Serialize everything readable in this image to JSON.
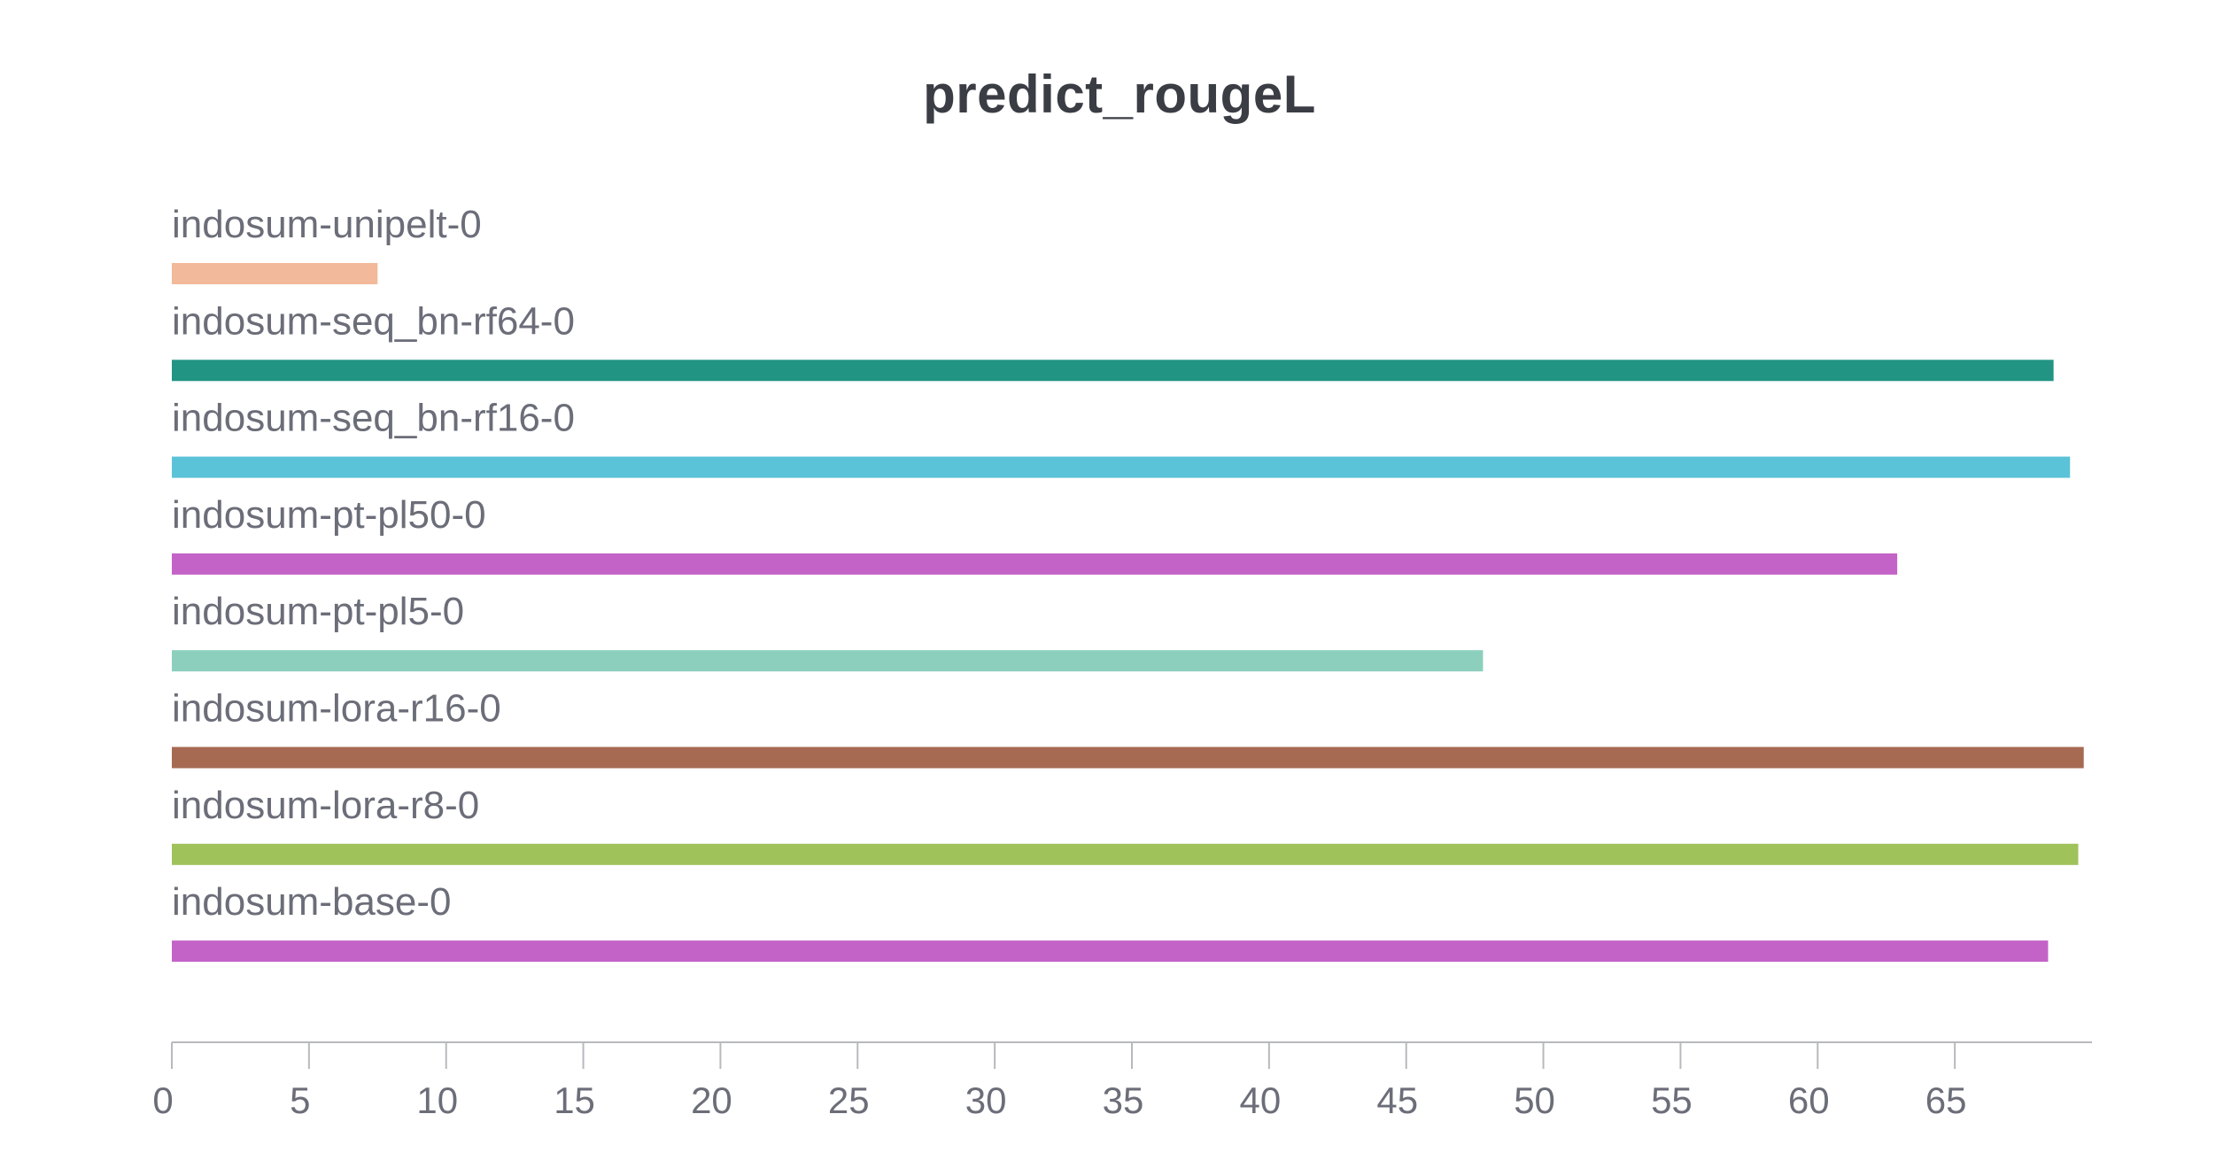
{
  "chart_data": {
    "type": "bar",
    "orientation": "horizontal",
    "title": "predict_rougeL",
    "xlabel": "",
    "ylabel": "",
    "xlim": [
      0,
      70
    ],
    "grid": false,
    "legend": "none",
    "x_ticks": [
      0,
      5,
      10,
      15,
      20,
      25,
      30,
      35,
      40,
      45,
      50,
      55,
      60,
      65
    ],
    "bars": [
      {
        "name": "indosum-unipelt-0",
        "value": 7.5,
        "color": "#f2b99a"
      },
      {
        "name": "indosum-seq_bn-rf64-0",
        "value": 68.6,
        "color": "#229484"
      },
      {
        "name": "indosum-seq_bn-rf16-0",
        "value": 69.2,
        "color": "#5bc3d8"
      },
      {
        "name": "indosum-pt-pl50-0",
        "value": 62.9,
        "color": "#c463c7"
      },
      {
        "name": "indosum-pt-pl5-0",
        "value": 47.8,
        "color": "#8ccfbd"
      },
      {
        "name": "indosum-lora-r16-0",
        "value": 69.7,
        "color": "#a66a52"
      },
      {
        "name": "indosum-lora-r8-0",
        "value": 69.5,
        "color": "#9fc25a"
      },
      {
        "name": "indosum-base-0",
        "value": 68.4,
        "color": "#c463c7"
      }
    ]
  }
}
